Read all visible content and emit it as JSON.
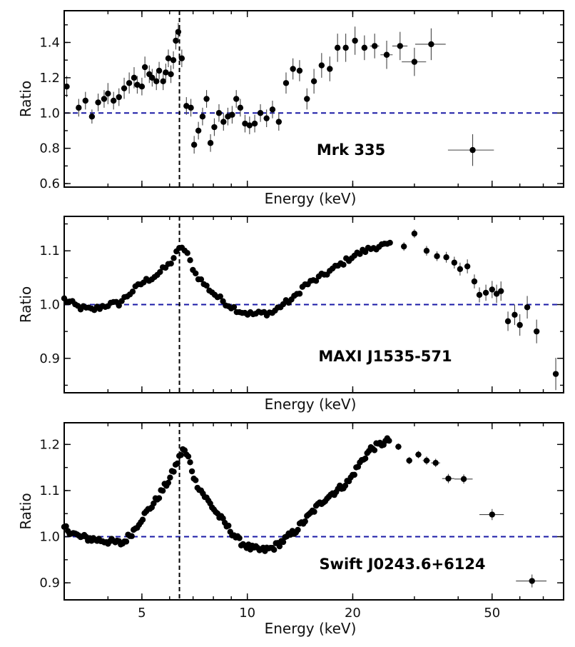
{
  "figure": {
    "line_energy_keV": 6.4,
    "colors": {
      "points": "#000000",
      "errorbars": "#444444",
      "reference_line": "#1a1aa6",
      "frame": "#000000"
    }
  },
  "chart_data": [
    {
      "type": "scatter",
      "title": "Mrk 335",
      "xlabel": "Energy (keV)",
      "ylabel": "Ratio",
      "xscale": "log",
      "xlim": [
        3,
        80
      ],
      "ylim": [
        0.58,
        1.58
      ],
      "yticks": [
        0.6,
        0.8,
        1.0,
        1.2,
        1.4
      ],
      "ytick_labels": [
        "0.6",
        "0.8",
        "1.0",
        "1.2",
        "1.4"
      ],
      "xticks": [
        5,
        10,
        20,
        50
      ],
      "xtick_labels": [],
      "reference_y": 1.0,
      "show_xlabel": true,
      "points": [
        [
          3.05,
          1.15,
          0.06,
          0.05
        ],
        [
          3.3,
          1.03,
          0.05,
          0.05
        ],
        [
          3.45,
          1.07,
          0.05,
          0.05
        ],
        [
          3.6,
          0.98,
          0.04,
          0.05
        ],
        [
          3.75,
          1.06,
          0.05,
          0.05
        ],
        [
          3.9,
          1.08,
          0.05,
          0.05
        ],
        [
          4.0,
          1.11,
          0.06,
          0.05
        ],
        [
          4.15,
          1.07,
          0.05,
          0.05
        ],
        [
          4.3,
          1.09,
          0.05,
          0.05
        ],
        [
          4.45,
          1.14,
          0.06,
          0.05
        ],
        [
          4.6,
          1.17,
          0.06,
          0.06
        ],
        [
          4.75,
          1.2,
          0.06,
          0.06
        ],
        [
          4.85,
          1.16,
          0.05,
          0.06
        ],
        [
          5.0,
          1.15,
          0.05,
          0.06
        ],
        [
          5.1,
          1.26,
          0.06,
          0.06
        ],
        [
          5.25,
          1.22,
          0.05,
          0.06
        ],
        [
          5.35,
          1.2,
          0.05,
          0.05
        ],
        [
          5.5,
          1.18,
          0.05,
          0.05
        ],
        [
          5.6,
          1.24,
          0.05,
          0.05
        ],
        [
          5.75,
          1.18,
          0.05,
          0.05
        ],
        [
          5.85,
          1.23,
          0.05,
          0.05
        ],
        [
          5.95,
          1.31,
          0.05,
          0.05
        ],
        [
          6.05,
          1.22,
          0.05,
          0.05
        ],
        [
          6.15,
          1.3,
          0.05,
          0.05
        ],
        [
          6.25,
          1.41,
          0.05,
          0.06
        ],
        [
          6.35,
          1.46,
          0.05,
          0.06
        ],
        [
          6.5,
          1.31,
          0.05,
          0.05
        ],
        [
          6.7,
          1.04,
          0.05,
          0.05
        ],
        [
          6.9,
          1.03,
          0.05,
          0.05
        ],
        [
          7.05,
          0.82,
          0.05,
          0.05
        ],
        [
          7.25,
          0.9,
          0.05,
          0.05
        ],
        [
          7.45,
          0.98,
          0.05,
          0.05
        ],
        [
          7.65,
          1.08,
          0.05,
          0.05
        ],
        [
          7.85,
          0.83,
          0.05,
          0.05
        ],
        [
          8.05,
          0.92,
          0.05,
          0.05
        ],
        [
          8.3,
          1.0,
          0.05,
          0.05
        ],
        [
          8.55,
          0.95,
          0.05,
          0.05
        ],
        [
          8.8,
          0.98,
          0.05,
          0.05
        ],
        [
          9.05,
          0.99,
          0.05,
          0.05
        ],
        [
          9.3,
          1.08,
          0.05,
          0.06
        ],
        [
          9.55,
          1.03,
          0.05,
          0.06
        ],
        [
          9.85,
          0.94,
          0.05,
          0.06
        ],
        [
          10.15,
          0.93,
          0.05,
          0.06
        ],
        [
          10.5,
          0.94,
          0.05,
          0.06
        ],
        [
          10.9,
          1.0,
          0.05,
          0.06
        ],
        [
          11.35,
          0.97,
          0.05,
          0.06
        ],
        [
          11.8,
          1.02,
          0.05,
          0.06
        ],
        [
          12.3,
          0.95,
          0.05,
          0.05
        ],
        [
          12.9,
          1.17,
          0.06,
          0.06
        ],
        [
          13.5,
          1.25,
          0.06,
          0.07
        ],
        [
          14.1,
          1.24,
          0.06,
          0.07
        ],
        [
          14.8,
          1.08,
          0.06,
          0.06
        ],
        [
          15.5,
          1.18,
          0.07,
          0.07
        ],
        [
          16.3,
          1.27,
          0.07,
          0.07
        ],
        [
          17.2,
          1.25,
          0.07,
          0.07
        ],
        [
          18.1,
          1.37,
          0.08,
          0.07
        ],
        [
          19.1,
          1.37,
          0.08,
          0.07
        ],
        [
          20.3,
          1.41,
          0.08,
          0.07
        ],
        [
          21.6,
          1.37,
          0.07,
          0.08
        ],
        [
          23.1,
          1.38,
          0.07,
          0.08
        ],
        [
          25.0,
          1.33,
          0.08,
          0.08
        ],
        [
          27.3,
          1.38,
          0.08,
          0.08
        ],
        [
          30.0,
          1.29,
          0.08,
          0.1
        ],
        [
          33.5,
          1.39,
          0.09,
          0.12
        ],
        [
          44.0,
          0.79,
          0.09,
          0.13
        ]
      ],
      "xerr_frac": [
        0,
        0,
        0,
        0,
        0,
        0,
        0,
        0,
        0,
        0,
        0,
        0,
        0,
        0,
        0,
        0,
        0,
        0,
        0,
        0,
        0,
        0,
        0,
        0,
        0,
        0,
        0,
        0,
        0,
        0,
        0,
        0,
        0,
        0,
        0,
        0,
        0,
        0,
        0,
        0,
        0,
        0,
        0,
        0,
        0,
        0,
        0,
        0,
        0,
        0,
        0,
        0,
        0,
        0,
        0,
        0,
        0,
        0,
        0.02,
        0.03,
        0.04,
        0.05,
        0.08,
        0.1,
        0.15
      ]
    },
    {
      "type": "scatter",
      "title": "MAXI J1535-571",
      "xlabel": "Energy (keV)",
      "ylabel": "Ratio",
      "xscale": "log",
      "xlim": [
        3,
        80
      ],
      "ylim": [
        0.836,
        1.164
      ],
      "yticks": [
        0.9,
        1.0,
        1.1
      ],
      "ytick_labels": [
        "0.9",
        "1.0",
        "1.1"
      ],
      "xticks": [
        5,
        10,
        20,
        50
      ],
      "xtick_labels": [],
      "reference_y": 1.0,
      "show_xlabel": true,
      "curve": {
        "knots": [
          [
            3.0,
            1.01
          ],
          [
            3.3,
            0.995
          ],
          [
            3.6,
            0.99
          ],
          [
            4.0,
            1.0
          ],
          [
            4.3,
            1.002
          ],
          [
            4.6,
            1.02
          ],
          [
            5.0,
            1.04
          ],
          [
            5.5,
            1.055
          ],
          [
            6.0,
            1.075
          ],
          [
            6.3,
            1.097
          ],
          [
            6.5,
            1.108
          ],
          [
            6.75,
            1.092
          ],
          [
            7.1,
            1.058
          ],
          [
            7.6,
            1.035
          ],
          [
            8.2,
            1.015
          ],
          [
            8.8,
            1.0
          ],
          [
            9.5,
            0.988
          ],
          [
            10.3,
            0.982
          ],
          [
            11.0,
            0.984
          ],
          [
            11.8,
            0.985
          ],
          [
            12.6,
            1.0
          ],
          [
            13.6,
            1.012
          ],
          [
            14.5,
            1.035
          ],
          [
            15.6,
            1.045
          ],
          [
            17.0,
            1.06
          ],
          [
            18.5,
            1.075
          ],
          [
            20.0,
            1.09
          ],
          [
            22.0,
            1.102
          ],
          [
            24.0,
            1.11
          ],
          [
            26.0,
            1.11
          ]
        ],
        "spacing": 0.018,
        "jitter": 0.005,
        "yerr": 0.004
      },
      "points": [
        [
          28.0,
          1.108,
          0.008
        ],
        [
          30.0,
          1.132,
          0.008
        ],
        [
          32.5,
          1.1,
          0.009
        ],
        [
          34.8,
          1.09,
          0.009
        ],
        [
          37.0,
          1.088,
          0.01
        ],
        [
          39.0,
          1.078,
          0.011
        ],
        [
          40.5,
          1.066,
          0.012
        ],
        [
          42.5,
          1.071,
          0.013
        ],
        [
          44.5,
          1.043,
          0.013
        ],
        [
          46.0,
          1.018,
          0.014
        ],
        [
          48.0,
          1.022,
          0.015
        ],
        [
          50.0,
          1.028,
          0.016
        ],
        [
          51.5,
          1.02,
          0.017
        ],
        [
          53.0,
          1.025,
          0.018
        ],
        [
          55.5,
          0.969,
          0.018
        ],
        [
          58.0,
          0.981,
          0.019
        ],
        [
          60.0,
          0.962,
          0.02
        ],
        [
          63.0,
          0.995,
          0.021
        ],
        [
          67.0,
          0.95,
          0.022
        ],
        [
          76.0,
          0.871,
          0.03
        ]
      ]
    },
    {
      "type": "scatter",
      "title": "Swift J0243.6+6124",
      "xlabel": "Energy (keV)",
      "ylabel": "Ratio",
      "xscale": "log",
      "xlim": [
        3,
        80
      ],
      "ylim": [
        0.863,
        1.247
      ],
      "yticks": [
        0.9,
        1.0,
        1.1,
        1.2
      ],
      "ytick_labels": [
        "0.9",
        "1.0",
        "1.1",
        "1.2"
      ],
      "xticks": [
        5,
        10,
        20,
        50
      ],
      "xtick_labels": [
        "5",
        "10",
        "20",
        "50"
      ],
      "reference_y": 1.0,
      "show_xlabel": true,
      "curve": {
        "knots": [
          [
            3.0,
            1.02
          ],
          [
            3.3,
            1.0
          ],
          [
            3.6,
            0.995
          ],
          [
            4.0,
            0.99
          ],
          [
            4.4,
            0.985
          ],
          [
            4.7,
            1.01
          ],
          [
            5.0,
            1.04
          ],
          [
            5.5,
            1.08
          ],
          [
            6.0,
            1.125
          ],
          [
            6.3,
            1.16
          ],
          [
            6.55,
            1.19
          ],
          [
            6.8,
            1.17
          ],
          [
            7.1,
            1.12
          ],
          [
            7.6,
            1.085
          ],
          [
            8.2,
            1.05
          ],
          [
            8.8,
            1.02
          ],
          [
            9.5,
            0.99
          ],
          [
            10.2,
            0.975
          ],
          [
            11.0,
            0.97
          ],
          [
            11.8,
            0.975
          ],
          [
            12.6,
            0.99
          ],
          [
            13.6,
            1.01
          ],
          [
            14.6,
            1.035
          ],
          [
            15.6,
            1.06
          ],
          [
            16.8,
            1.085
          ],
          [
            18.0,
            1.1
          ],
          [
            19.5,
            1.12
          ],
          [
            21.0,
            1.16
          ],
          [
            22.5,
            1.19
          ],
          [
            24.0,
            1.2
          ],
          [
            25.5,
            1.21
          ]
        ],
        "spacing": 0.012,
        "jitter": 0.007,
        "yerr": 0.006
      },
      "points": [
        [
          27.0,
          1.195,
          0.007,
          0.02
        ],
        [
          29.0,
          1.165,
          0.008,
          0.02
        ],
        [
          30.8,
          1.178,
          0.008,
          0.02
        ],
        [
          32.5,
          1.165,
          0.009,
          0.025
        ],
        [
          34.5,
          1.16,
          0.009,
          0.03
        ],
        [
          37.5,
          1.126,
          0.01,
          0.04
        ],
        [
          41.5,
          1.125,
          0.01,
          0.06
        ],
        [
          50.0,
          1.048,
          0.012,
          0.08
        ],
        [
          65.0,
          0.904,
          0.014,
          0.1
        ]
      ]
    }
  ]
}
